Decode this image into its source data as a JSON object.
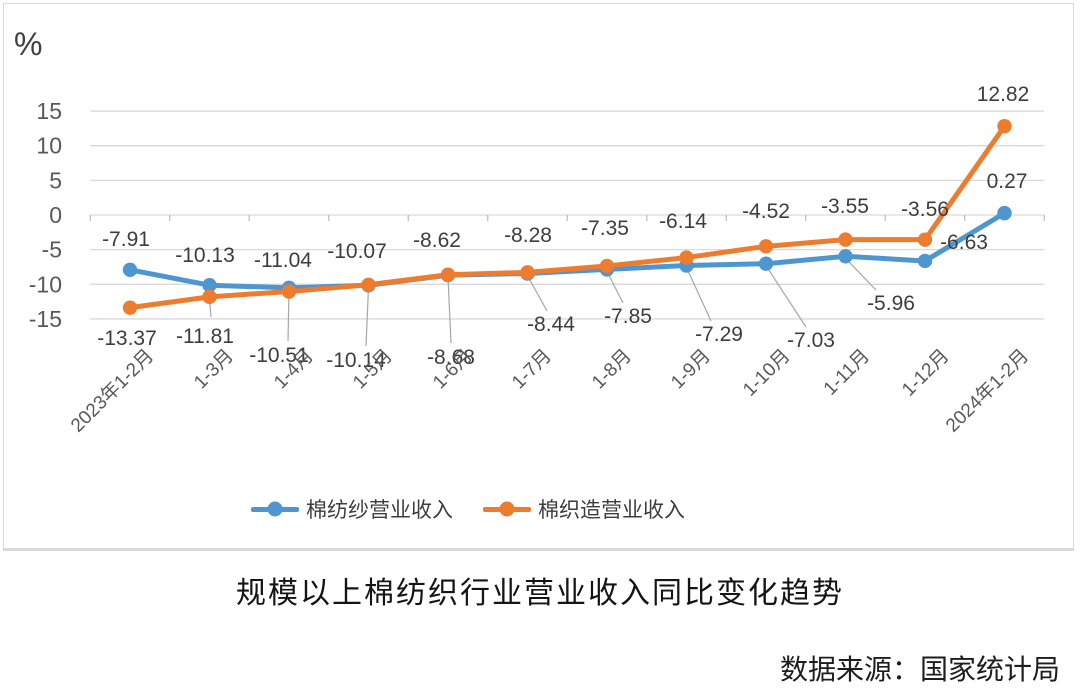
{
  "chart_data": {
    "type": "line",
    "title": "规模以上棉纺织行业营业收入同比变化趋势",
    "source_note": "数据来源：国家统计局",
    "ylabel": "%",
    "xlabel": "",
    "ylim": [
      -15,
      15
    ],
    "y_ticks": [
      15,
      10,
      5,
      0,
      -5,
      -10,
      -15
    ],
    "grid": true,
    "legend_position": "bottom",
    "marker": "circle",
    "categories": [
      "2023年1-2月",
      "1-3月",
      "1-4月",
      "1-5月",
      "1-6月",
      "1-7月",
      "1-8月",
      "1-9月",
      "1-10月",
      "1-11月",
      "1-12月",
      "2024年1-2月"
    ],
    "series": [
      {
        "name": "棉纺纱营业收入",
        "color": "#4D96D2",
        "values": [
          -7.91,
          -10.13,
          -10.51,
          -10.14,
          -8.68,
          -8.44,
          -7.85,
          -7.29,
          -7.03,
          -5.96,
          -6.63,
          0.27
        ]
      },
      {
        "name": "棉织造营业收入",
        "color": "#ED7C2F",
        "values": [
          -13.37,
          -11.81,
          -11.04,
          -10.07,
          -8.62,
          -8.28,
          -7.35,
          -6.14,
          -4.52,
          -3.55,
          -3.56,
          12.82
        ]
      }
    ],
    "colors": {
      "grid": "#d9d9d9",
      "axis_tick": "#c0c0c0",
      "leader_line": "#a6a6a6",
      "data_label": "#3d3d3d",
      "axis_label": "#595959"
    }
  }
}
